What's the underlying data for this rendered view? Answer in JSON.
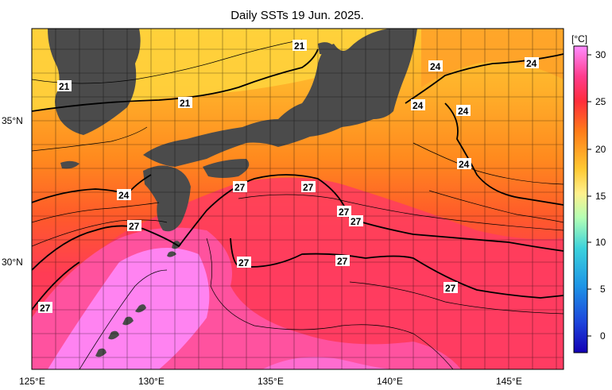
{
  "title": "Daily SSTs 19 Jun. 2025.",
  "colorbar": {
    "unit": "[°C]",
    "ticks": [
      "30",
      "25",
      "20",
      "15",
      "10",
      "5",
      "0"
    ],
    "colors": [
      "#ff8cff",
      "#ff3c6e",
      "#ff7d19",
      "#ffc832",
      "#fff08c",
      "#b4ffb4",
      "#3cd2dc",
      "#1e96e6",
      "#1e46dc",
      "#1400b4"
    ]
  },
  "axes": {
    "x_ticks": [
      "125°E",
      "130°E",
      "135°E",
      "140°E",
      "145°E"
    ],
    "y_ticks": [
      "35°N",
      "30°N"
    ]
  },
  "contour_labels": [
    {
      "id": "iso-21-north",
      "text": "21"
    },
    {
      "id": "iso-21-korea",
      "text": "21"
    },
    {
      "id": "iso-21-west",
      "text": "21"
    },
    {
      "id": "iso-24-ne1",
      "text": "24"
    },
    {
      "id": "iso-24-ne2",
      "text": "24"
    },
    {
      "id": "iso-24-ne3",
      "text": "24"
    },
    {
      "id": "iso-24-e1",
      "text": "24"
    },
    {
      "id": "iso-24-e2",
      "text": "24"
    },
    {
      "id": "iso-24-kyushu",
      "text": "24"
    },
    {
      "id": "iso-27-shikoku",
      "text": "27"
    },
    {
      "id": "iso-27-kii",
      "text": "27"
    },
    {
      "id": "iso-27-c1",
      "text": "27"
    },
    {
      "id": "iso-27-c2",
      "text": "27"
    },
    {
      "id": "iso-27-kyushu",
      "text": "27"
    },
    {
      "id": "iso-27-s1",
      "text": "27"
    },
    {
      "id": "iso-27-s2",
      "text": "27"
    },
    {
      "id": "iso-27-se",
      "text": "27"
    },
    {
      "id": "iso-27-sw",
      "text": "27"
    }
  ]
}
